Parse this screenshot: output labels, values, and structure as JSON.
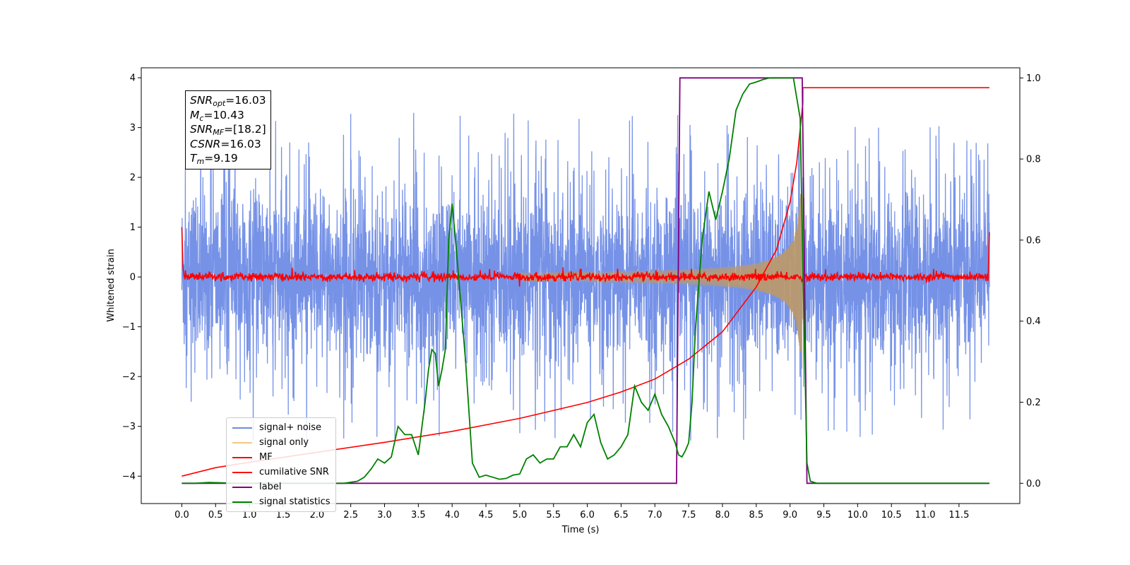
{
  "chart_data": {
    "type": "line",
    "xlabel": "Time (s)",
    "ylabel": "Whitened strain",
    "xlim": [
      -0.6,
      12.4
    ],
    "ylim": [
      -4.55,
      4.2
    ],
    "ylim_right": [
      -0.05,
      1.025
    ],
    "x_ticks": [
      "0.0",
      "0.5",
      "1.0",
      "1.5",
      "2.0",
      "2.5",
      "3.0",
      "3.5",
      "4.0",
      "4.5",
      "5.0",
      "5.5",
      "6.0",
      "6.5",
      "7.0",
      "7.5",
      "8.0",
      "8.5",
      "9.0",
      "9.5",
      "10.0",
      "10.5",
      "11.0",
      "11.5"
    ],
    "y_ticks": [
      "4",
      "3",
      "2",
      "1",
      "0",
      "−1",
      "−2",
      "−3",
      "−4"
    ],
    "y2_ticks": [
      "0.0",
      "0.2",
      "0.4",
      "0.6",
      "0.8",
      "1.0"
    ],
    "annotation": {
      "snr_opt": "16.03",
      "mc": "10.43",
      "snr_mf": "[18.2]",
      "csnr": "16.03",
      "tm": "9.19"
    },
    "series": [
      {
        "name": "signal+ noise",
        "color": "#6f8ce6",
        "axis": "left",
        "description": "whitened noisy strain, roughly ±1.5 with spikes to ±3"
      },
      {
        "name": "signal only",
        "color": "#f5c77e",
        "axis": "left",
        "chirp": {
          "start": 5.0,
          "merger": 9.19,
          "peak_amplitude": 1.85
        }
      },
      {
        "name": "MF",
        "color": "#ff0000",
        "axis": "left",
        "description": "matched filter output near 0, edge spikes to 1.0 and 0.9"
      },
      {
        "name": "cumilative SNR",
        "color": "#ff0000",
        "axis": "left",
        "x": [
          0.0,
          0.5,
          1.0,
          2.0,
          3.0,
          4.0,
          5.0,
          6.0,
          6.5,
          7.0,
          7.5,
          8.0,
          8.5,
          8.8,
          9.0,
          9.1,
          9.19
        ],
        "y": [
          -4.0,
          -3.83,
          -3.72,
          -3.52,
          -3.32,
          -3.1,
          -2.84,
          -2.52,
          -2.31,
          -2.05,
          -1.65,
          -1.1,
          -0.2,
          0.55,
          1.5,
          2.3,
          3.5
        ]
      },
      {
        "name": "label",
        "color": "#800080",
        "axis": "right",
        "x": [
          0.0,
          7.32,
          7.37,
          9.18,
          9.25,
          11.95
        ],
        "y": [
          0.0,
          0.0,
          1.0,
          1.0,
          0.0,
          0.0
        ]
      },
      {
        "name": "signal statistics",
        "color": "#008000",
        "axis": "right",
        "x": [
          0.0,
          0.2,
          0.4,
          0.6,
          0.8,
          1.0,
          1.2,
          1.4,
          1.6,
          1.8,
          2.0,
          2.2,
          2.4,
          2.6,
          2.7,
          2.8,
          2.9,
          3.0,
          3.1,
          3.2,
          3.3,
          3.4,
          3.5,
          3.6,
          3.65,
          3.7,
          3.75,
          3.8,
          3.85,
          3.9,
          3.95,
          4.0,
          4.05,
          4.1,
          4.2,
          4.3,
          4.4,
          4.5,
          4.6,
          4.7,
          4.8,
          4.9,
          5.0,
          5.1,
          5.2,
          5.3,
          5.4,
          5.5,
          5.6,
          5.7,
          5.8,
          5.9,
          6.0,
          6.1,
          6.2,
          6.3,
          6.4,
          6.5,
          6.6,
          6.7,
          6.8,
          6.85,
          6.9,
          7.0,
          7.1,
          7.2,
          7.3,
          7.35,
          7.4,
          7.45,
          7.5,
          7.55,
          7.6,
          7.7,
          7.8,
          7.9,
          8.0,
          8.1,
          8.2,
          8.3,
          8.4,
          8.5,
          8.6,
          8.7,
          8.8,
          8.9,
          9.0,
          9.05,
          9.1,
          9.15,
          9.2,
          9.25,
          9.3,
          9.4,
          9.6,
          10.0,
          11.0,
          11.95
        ],
        "y": [
          0.0,
          0.0,
          0.002,
          0.001,
          0.0,
          0.0,
          0.0,
          0.0,
          0.0,
          0.0,
          0.0,
          0.0,
          0.0,
          0.005,
          0.015,
          0.035,
          0.06,
          0.05,
          0.065,
          0.14,
          0.12,
          0.12,
          0.07,
          0.2,
          0.28,
          0.33,
          0.32,
          0.24,
          0.28,
          0.33,
          0.6,
          0.69,
          0.6,
          0.5,
          0.3,
          0.05,
          0.015,
          0.02,
          0.015,
          0.01,
          0.012,
          0.02,
          0.023,
          0.06,
          0.07,
          0.05,
          0.06,
          0.06,
          0.09,
          0.09,
          0.12,
          0.09,
          0.15,
          0.17,
          0.1,
          0.06,
          0.07,
          0.09,
          0.12,
          0.24,
          0.2,
          0.19,
          0.18,
          0.22,
          0.17,
          0.14,
          0.1,
          0.07,
          0.065,
          0.08,
          0.1,
          0.2,
          0.38,
          0.6,
          0.72,
          0.65,
          0.72,
          0.8,
          0.92,
          0.96,
          0.985,
          0.99,
          0.996,
          1.0,
          1.0,
          1.0,
          1.0,
          1.0,
          0.95,
          0.9,
          0.45,
          0.05,
          0.005,
          0.0,
          0.0,
          0.0,
          0.0,
          0.0
        ]
      }
    ]
  }
}
